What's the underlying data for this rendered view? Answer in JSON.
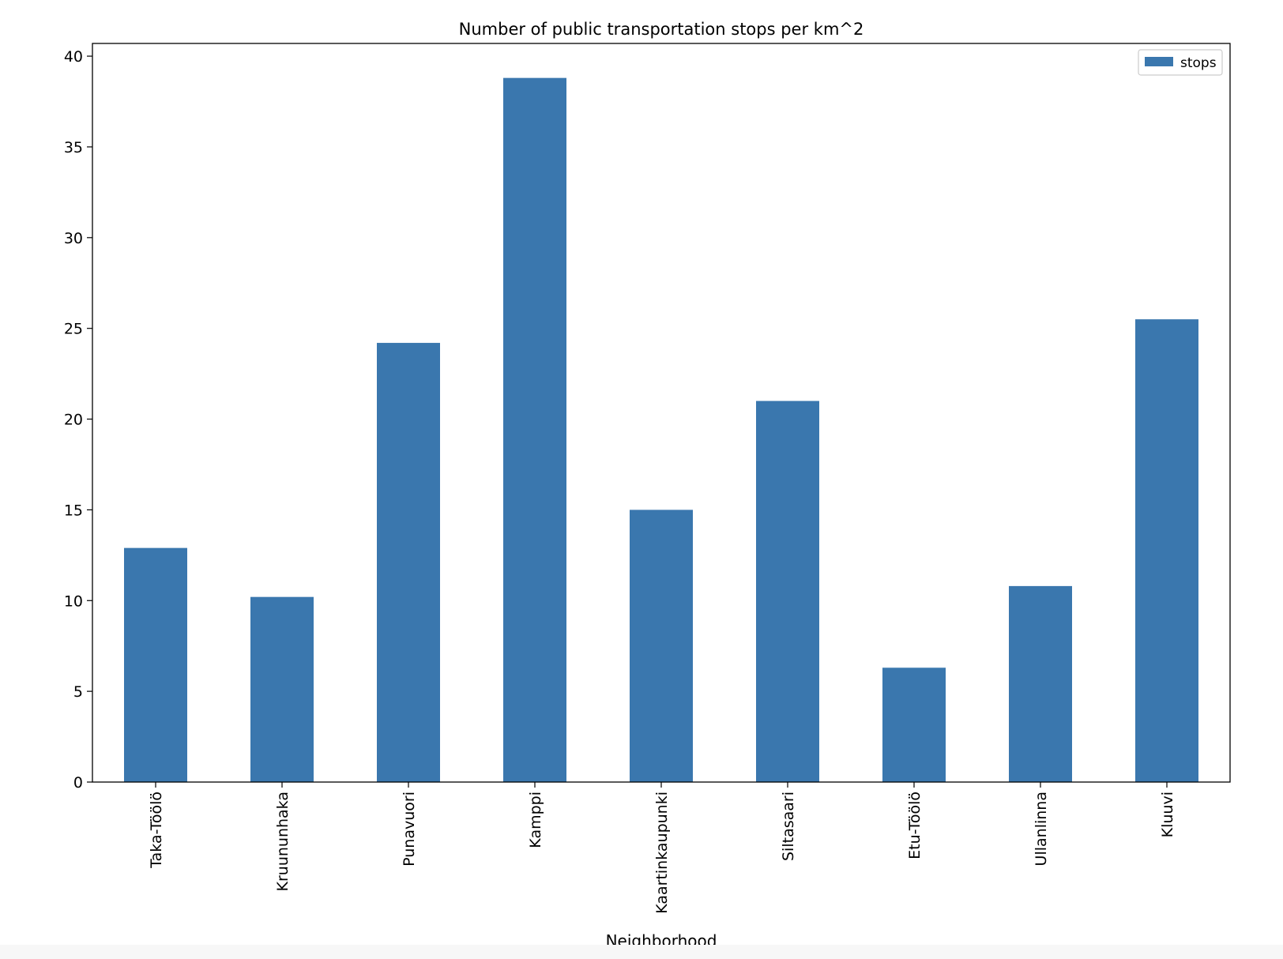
{
  "chart_data": {
    "type": "bar",
    "title": "Number of public transportation stops per km^2",
    "xlabel": "Neighborhood",
    "ylabel": "",
    "categories": [
      "Taka-Töölö",
      "Kruununhaka",
      "Punavuori",
      "Kamppi",
      "Kaartinkaupunki",
      "Siltasaari",
      "Etu-Töölö",
      "Ullanlinna",
      "Kluuvi"
    ],
    "series": [
      {
        "name": "stops",
        "values": [
          12.9,
          10.2,
          24.2,
          38.8,
          15.0,
          21.0,
          6.3,
          10.8,
          25.5
        ]
      }
    ],
    "ylim": [
      0,
      40.7
    ],
    "yticks": [
      0,
      5,
      10,
      15,
      20,
      25,
      30,
      35,
      40
    ],
    "grid": false,
    "legend": "top-right",
    "bar_color": "#3a77ae",
    "tick_label_rotation": "vertical"
  }
}
